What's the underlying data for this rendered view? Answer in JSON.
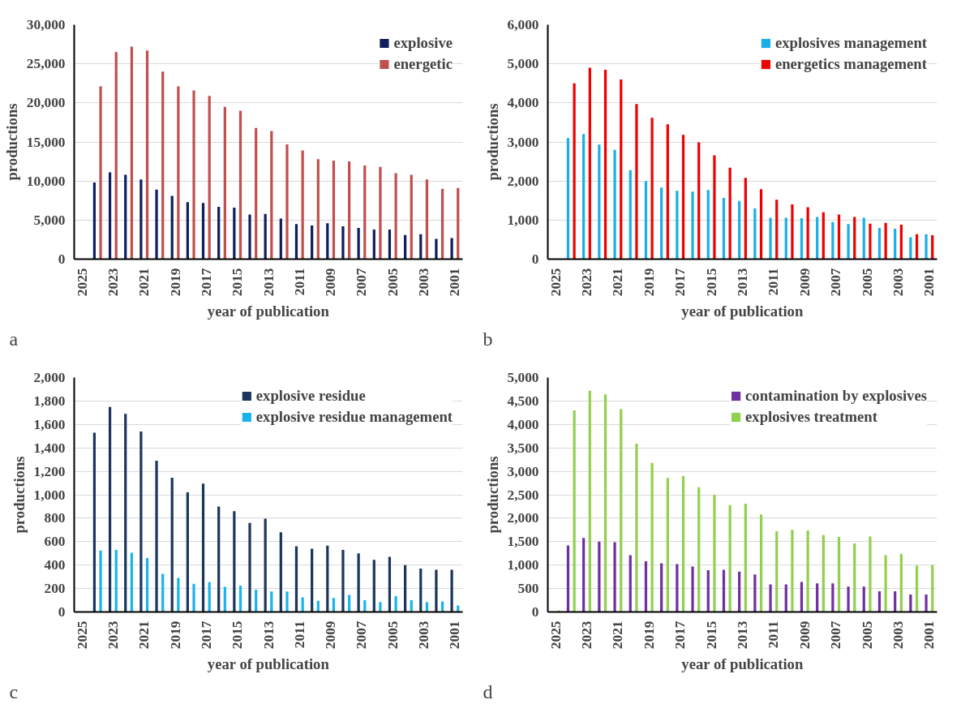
{
  "chart_data": [
    {
      "type": "bar",
      "xlabel": "year of publication",
      "ylabel": "productions",
      "annotations": [
        "a"
      ],
      "legend": "top right",
      "grid": "y",
      "categories": [
        "2025",
        null,
        "2023",
        null,
        "2021",
        null,
        "2019",
        null,
        "2017",
        null,
        "2015",
        null,
        "2013",
        null,
        "2011",
        null,
        "2009",
        null,
        "2007",
        null,
        "2005",
        null,
        "2003",
        null,
        "2001"
      ],
      "ylim": [
        0,
        30000
      ],
      "yticks": [
        {
          "value": 0,
          "label": "0"
        },
        {
          "value": 5000,
          "label": "5,000"
        },
        {
          "value": 10000,
          "label": "10,000"
        },
        {
          "value": 15000,
          "label": "15,000"
        },
        {
          "value": 20000,
          "label": "20,000"
        },
        {
          "value": 25000,
          "label": "25,000"
        },
        {
          "value": 30000,
          "label": "30,000"
        }
      ],
      "series": [
        {
          "name": "explosive",
          "color": "#0d1f5c",
          "values": [
            0,
            9800,
            11100,
            10800,
            10200,
            8900,
            8100,
            7300,
            7200,
            6700,
            6600,
            5700,
            5800,
            5200,
            4500,
            4300,
            4600,
            4200,
            4000,
            3800,
            3800,
            3100,
            3200,
            2600,
            2700
          ]
        },
        {
          "name": "energetic",
          "color": "#c0504d",
          "values": [
            0,
            22100,
            26500,
            27200,
            26700,
            24000,
            22100,
            21600,
            20900,
            19500,
            19000,
            16800,
            16400,
            14700,
            13900,
            12800,
            12600,
            12500,
            12000,
            11800,
            11000,
            10800,
            10200,
            9000,
            9100
          ]
        }
      ]
    },
    {
      "type": "bar",
      "xlabel": "year of publication",
      "ylabel": "productions",
      "annotations": [
        "b"
      ],
      "legend": "top right",
      "grid": "y",
      "categories": [
        "2025",
        null,
        "2023",
        null,
        "2021",
        null,
        "2019",
        null,
        "2017",
        null,
        "2015",
        null,
        "2013",
        null,
        "2011",
        null,
        "2009",
        null,
        "2007",
        null,
        "2005",
        null,
        "2003",
        null,
        "2001"
      ],
      "ylim": [
        0,
        6000
      ],
      "yticks": [
        {
          "value": 0,
          "label": "0"
        },
        {
          "value": 1000,
          "label": "1,000"
        },
        {
          "value": 2000,
          "label": "2,000"
        },
        {
          "value": 3000,
          "label": "3,000"
        },
        {
          "value": 4000,
          "label": "4,000"
        },
        {
          "value": 5000,
          "label": "5,000"
        },
        {
          "value": 6000,
          "label": "6,000"
        }
      ],
      "series": [
        {
          "name": "explosives management",
          "color": "#1aafe6",
          "values": [
            0,
            3100,
            3200,
            2930,
            2800,
            2280,
            2000,
            1830,
            1750,
            1730,
            1770,
            1570,
            1490,
            1300,
            1060,
            1060,
            1050,
            1080,
            950,
            900,
            1060,
            800,
            780,
            560,
            640
          ]
        },
        {
          "name": "energetics management",
          "color": "#ee0000",
          "values": [
            0,
            4500,
            4900,
            4850,
            4600,
            3970,
            3620,
            3450,
            3180,
            2990,
            2660,
            2340,
            2080,
            1790,
            1520,
            1400,
            1330,
            1200,
            1140,
            1080,
            910,
            930,
            880,
            640,
            610
          ]
        }
      ]
    },
    {
      "type": "bar",
      "xlabel": "year of publication",
      "ylabel": "productions",
      "annotations": [
        "c"
      ],
      "legend": "top right",
      "grid": "y",
      "categories": [
        "2025",
        null,
        "2023",
        null,
        "2021",
        null,
        "2019",
        null,
        "2017",
        null,
        "2015",
        null,
        "2013",
        null,
        "2011",
        null,
        "2009",
        null,
        "2007",
        null,
        "2005",
        null,
        "2003",
        null,
        "2001"
      ],
      "ylim": [
        0,
        2000
      ],
      "yticks": [
        {
          "value": 0,
          "label": "0"
        },
        200,
        400,
        600,
        800,
        {
          "value": 1000,
          "label": "1,000"
        },
        {
          "value": 1200,
          "label": "1,200"
        },
        {
          "value": 1400,
          "label": "1,400"
        },
        {
          "value": 1600,
          "label": "1,600"
        },
        {
          "value": 1800,
          "label": "1,800"
        },
        {
          "value": 2000,
          "label": "2,000"
        }
      ],
      "series": [
        {
          "name": "explosive residue",
          "color": "#1b365d",
          "values": [
            0,
            1530,
            1750,
            1690,
            1540,
            1290,
            1145,
            1020,
            1095,
            900,
            860,
            760,
            795,
            680,
            560,
            540,
            565,
            530,
            500,
            445,
            470,
            400,
            370,
            360,
            360
          ]
        },
        {
          "name": "explosive residue management",
          "color": "#19b4ec",
          "values": [
            0,
            525,
            530,
            505,
            460,
            325,
            290,
            240,
            255,
            215,
            225,
            190,
            175,
            175,
            125,
            95,
            120,
            145,
            100,
            85,
            135,
            100,
            85,
            90,
            55
          ]
        }
      ]
    },
    {
      "type": "bar",
      "xlabel": "year of publication",
      "ylabel": "productions",
      "annotations": [
        "d"
      ],
      "legend": "top right",
      "grid": "y",
      "categories": [
        "2025",
        null,
        "2023",
        null,
        "2021",
        null,
        "2019",
        null,
        "2017",
        null,
        "2015",
        null,
        "2013",
        null,
        "2011",
        null,
        "2009",
        null,
        "2007",
        null,
        "2005",
        null,
        "2003",
        null,
        "2001"
      ],
      "ylim": [
        0,
        5000
      ],
      "yticks": [
        {
          "value": 0,
          "label": "0"
        },
        500,
        {
          "value": 1000,
          "label": "1,000"
        },
        {
          "value": 1500,
          "label": "1,500"
        },
        {
          "value": 2000,
          "label": "2,000"
        },
        {
          "value": 2500,
          "label": "2,500"
        },
        {
          "value": 3000,
          "label": "3,000"
        },
        {
          "value": 3500,
          "label": "3,500"
        },
        {
          "value": 4000,
          "label": "4,000"
        },
        {
          "value": 4500,
          "label": "4,500"
        },
        {
          "value": 5000,
          "label": "5,000"
        }
      ],
      "series": [
        {
          "name": "contamination by explosives",
          "color": "#7030a0",
          "values": [
            0,
            1420,
            1580,
            1500,
            1490,
            1210,
            1080,
            1040,
            1020,
            970,
            890,
            900,
            860,
            800,
            590,
            590,
            640,
            610,
            610,
            540,
            540,
            440,
            440,
            370,
            370
          ]
        },
        {
          "name": "explosives treatment",
          "color": "#92d050",
          "values": [
            30,
            4300,
            4720,
            4640,
            4330,
            3590,
            3180,
            2860,
            2900,
            2660,
            2500,
            2280,
            2310,
            2080,
            1720,
            1750,
            1740,
            1640,
            1600,
            1460,
            1610,
            1210,
            1240,
            990,
            1000
          ]
        }
      ]
    }
  ]
}
